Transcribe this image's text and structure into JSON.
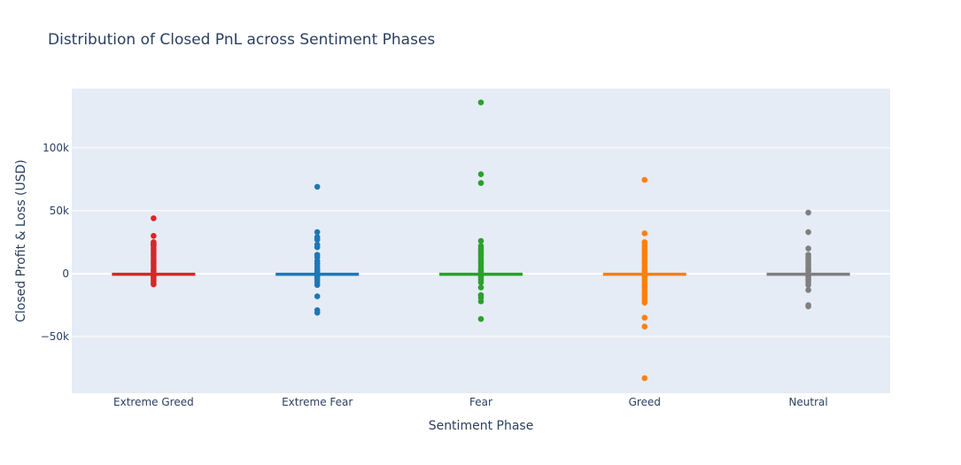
{
  "chart_data": {
    "type": "box",
    "title": "Distribution of Closed PnL across Sentiment Phases",
    "xlabel": "Sentiment Phase",
    "ylabel": "Closed Profit & Loss (USD)",
    "ylim": [
      -95000,
      147000
    ],
    "yticks": [
      {
        "value": -50000,
        "label": "−50k"
      },
      {
        "value": 0,
        "label": "0"
      },
      {
        "value": 50000,
        "label": "50k"
      },
      {
        "value": 100000,
        "label": "100k"
      }
    ],
    "grid": true,
    "legend": "none",
    "series": [
      {
        "category": "Extreme Greed",
        "color": "#d62728",
        "box": {
          "q1": -10,
          "median": 0,
          "q3": 30,
          "whisker_low": -150,
          "whisker_high": 150
        },
        "outliers": [
          44000,
          30000,
          25000,
          24000,
          23000,
          22000,
          20000,
          18000,
          16000,
          14000,
          12000,
          10000,
          8000,
          6000,
          4000,
          2500,
          1500,
          -1500,
          -2500,
          -4000,
          -5500,
          -7000,
          -8500
        ]
      },
      {
        "category": "Extreme Fear",
        "color": "#1f77b4",
        "box": {
          "q1": -10,
          "median": 0,
          "q3": 30,
          "whisker_low": -150,
          "whisker_high": 150
        },
        "outliers": [
          69000,
          33000,
          29000,
          27000,
          23000,
          21000,
          15000,
          13000,
          10000,
          8000,
          6000,
          4000,
          2500,
          1500,
          -1500,
          -3000,
          -5000,
          -7000,
          -9000,
          -18000,
          -29000,
          -31000
        ]
      },
      {
        "category": "Fear",
        "color": "#2ca02c",
        "box": {
          "q1": -10,
          "median": 0,
          "q3": 30,
          "whisker_low": -150,
          "whisker_high": 150
        },
        "outliers": [
          136000,
          79000,
          72000,
          26000,
          22000,
          20000,
          18000,
          16000,
          14000,
          12000,
          10000,
          8000,
          6000,
          4000,
          2500,
          1500,
          -1500,
          -3000,
          -5000,
          -7000,
          -11000,
          -17000,
          -19000,
          -22000,
          -36000
        ]
      },
      {
        "category": "Greed",
        "color": "#ff7f0e",
        "box": {
          "q1": -10,
          "median": 0,
          "q3": 30,
          "whisker_low": -150,
          "whisker_high": 150
        },
        "outliers": [
          74500,
          32000,
          25000,
          24000,
          22000,
          20000,
          18000,
          16000,
          14000,
          12000,
          10000,
          8000,
          6000,
          4000,
          2500,
          1500,
          -1500,
          -3000,
          -5000,
          -7000,
          -9000,
          -11000,
          -13000,
          -15000,
          -17000,
          -19000,
          -21000,
          -23000,
          -35000,
          -42000,
          -83000
        ]
      },
      {
        "category": "Neutral",
        "color": "#7f7f7f",
        "box": {
          "q1": -10,
          "median": 0,
          "q3": 30,
          "whisker_low": -150,
          "whisker_high": 150
        },
        "outliers": [
          48500,
          33000,
          20000,
          15000,
          13000,
          11000,
          9000,
          7000,
          5000,
          3500,
          2000,
          -2000,
          -3500,
          -5000,
          -7000,
          -9000,
          -13000,
          -25000,
          -26000
        ]
      }
    ]
  }
}
